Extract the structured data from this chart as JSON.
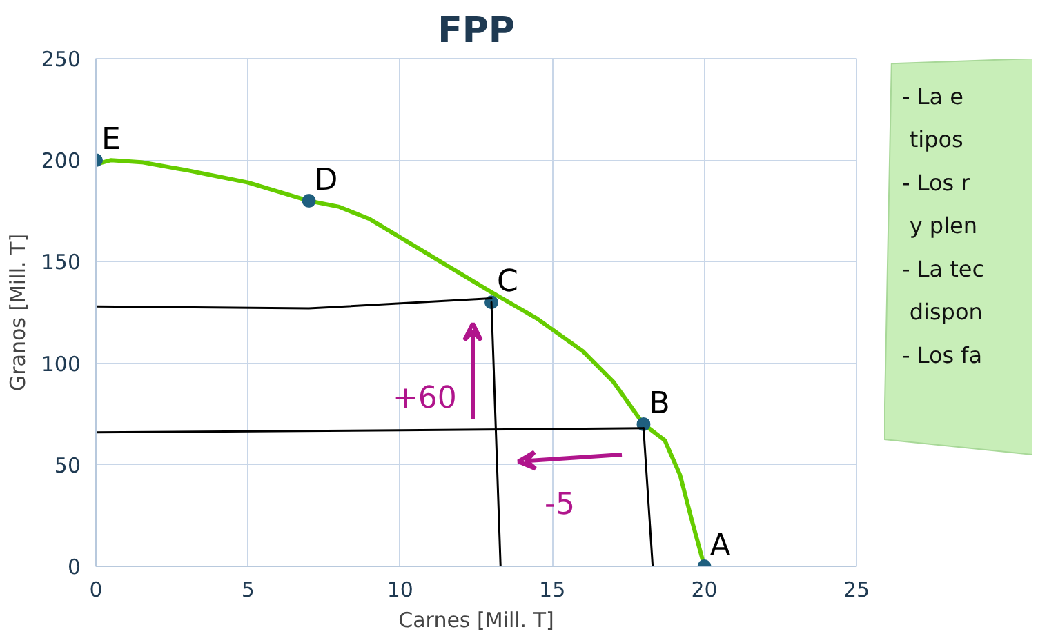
{
  "chart_data": [
    {
      "type": "line",
      "title": "FPP",
      "xlabel": "Carnes [Mill. T]",
      "ylabel": "Granos [Mill. T]",
      "xlim": [
        0,
        25
      ],
      "xticks": [
        0,
        5,
        10,
        15,
        20,
        25
      ],
      "ylim": [
        0,
        250
      ],
      "yticks": [
        0,
        50,
        100,
        150,
        200,
        250
      ],
      "grid": true,
      "series": [
        {
          "type": "line",
          "color": "#66cc00",
          "x": [
            0,
            0.5,
            1.5,
            3,
            5,
            7,
            8,
            9,
            10,
            11,
            13,
            14.5,
            16,
            17,
            18,
            18.7,
            19.2,
            19.6,
            20
          ],
          "values": [
            198,
            200,
            199,
            195,
            189,
            180,
            177,
            171,
            162,
            153,
            135,
            122,
            106,
            91,
            70,
            62,
            45,
            22,
            0
          ]
        },
        {
          "type": "scatter",
          "color": "#1f5f7f",
          "x": [
            0,
            7,
            13,
            18,
            20
          ],
          "values": [
            200,
            180,
            130,
            70,
            0
          ]
        },
        {
          "type": "line",
          "color": "#000000",
          "x": [
            0,
            7,
            13
          ],
          "values": [
            128,
            127,
            132
          ]
        },
        {
          "type": "line",
          "color": "#000000",
          "x": [
            0,
            10,
            18
          ],
          "values": [
            66,
            67,
            68
          ]
        },
        {
          "type": "line",
          "color": "#000000",
          "x": [
            13,
            13.3
          ],
          "values": [
            130,
            0
          ]
        },
        {
          "type": "line",
          "color": "#000000",
          "x": [
            18,
            18.3
          ],
          "values": [
            68,
            0
          ]
        }
      ],
      "annotations": [
        {
          "text": "E",
          "x": 0,
          "y": 200
        },
        {
          "text": "D",
          "x": 7,
          "y": 180
        },
        {
          "text": "C",
          "x": 13,
          "y": 130
        },
        {
          "text": "B",
          "x": 18,
          "y": 70
        },
        {
          "text": "A",
          "x": 20,
          "y": 0
        },
        "+60",
        "-5"
      ]
    },
    {
      "type": "other",
      "annotations": [
        "- La e",
        "tipos",
        "- Los r",
        "y plen",
        "- La tec",
        "dispon",
        "- Los fa"
      ]
    }
  ]
}
